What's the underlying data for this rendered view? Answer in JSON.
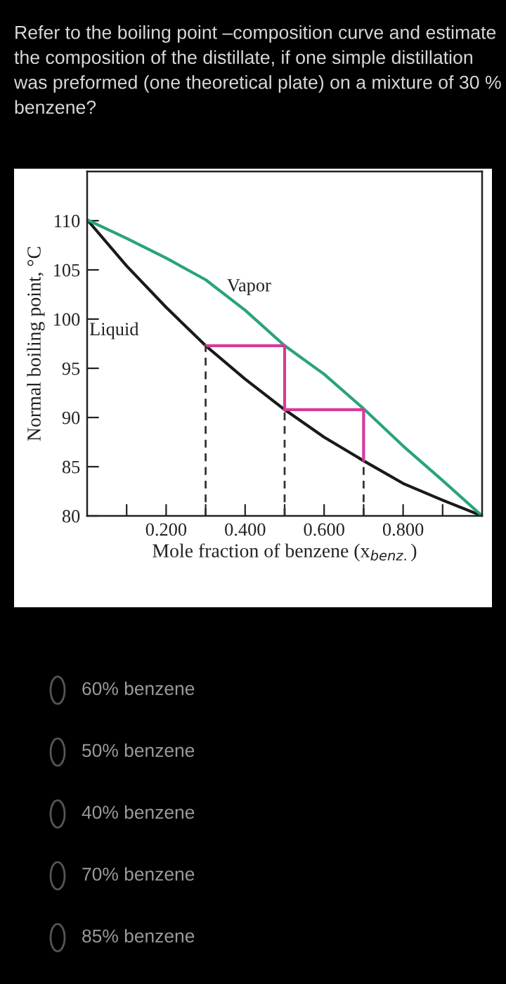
{
  "chart_data": {
    "type": "line",
    "title": "Refer to the boiling point –composition curve and estimate the composition of the distillate, if one simple distillation was preformed (one theoretical plate) on a mixture of 30 % benzene?",
    "xlabel": "Mole fraction of benzene (x$_{benz.}$)",
    "ylabel": "Normal boiling point, °C",
    "xlim": [
      0,
      1
    ],
    "ylim": [
      80,
      115
    ],
    "xticks": [
      {
        "value": 0.1,
        "label": null
      },
      {
        "value": 0.2,
        "label": "0.200"
      },
      {
        "value": 0.3,
        "label": null
      },
      {
        "value": 0.4,
        "label": "0.400"
      },
      {
        "value": 0.5,
        "label": null
      },
      {
        "value": 0.6,
        "label": "0.600"
      },
      {
        "value": 0.7,
        "label": null
      },
      {
        "value": 0.8,
        "label": "0.800"
      },
      {
        "value": 0.9,
        "label": null
      }
    ],
    "yticks": [
      80,
      85,
      90,
      95,
      100,
      105,
      110
    ],
    "series": [
      {
        "name": "Liquid",
        "color": "#1a1a1a",
        "x": [
          0,
          0.1,
          0.2,
          0.3,
          0.4,
          0.5,
          0.6,
          0.7,
          0.8,
          0.9,
          1.0
        ],
        "values": [
          110.1,
          105.4,
          101.2,
          97.3,
          93.9,
          90.8,
          88.0,
          85.6,
          83.3,
          81.6,
          80
        ]
      },
      {
        "name": "Vapor",
        "color": "#2aa37a",
        "x": [
          0,
          0.1,
          0.2,
          0.3,
          0.4,
          0.5,
          0.6,
          0.7,
          0.8,
          0.9,
          1.0
        ],
        "values": [
          110.1,
          108.2,
          106.2,
          104.0,
          100.9,
          97.3,
          94.4,
          90.9,
          87.1,
          83.6,
          80
        ]
      },
      {
        "color": "#d6399a",
        "x": [
          0.3,
          0.5,
          0.5,
          0.7,
          0.7
        ],
        "values": [
          97.3,
          97.3,
          90.8,
          90.8,
          85.6
        ]
      },
      {
        "color": "#333333",
        "line_style": "dashed",
        "x": [
          0.3,
          0.3
        ],
        "values": [
          80,
          97.3
        ]
      },
      {
        "color": "#333333",
        "line_style": "dashed",
        "x": [
          0.5,
          0.5
        ],
        "values": [
          80,
          90.8
        ]
      },
      {
        "color": "#333333",
        "line_style": "dashed",
        "x": [
          0.7,
          0.7
        ],
        "values": [
          80,
          85.6
        ]
      }
    ],
    "annotations": [
      "60% benzene",
      "50% benzene",
      "40% benzene",
      "70% benzene",
      "85% benzene"
    ]
  }
}
